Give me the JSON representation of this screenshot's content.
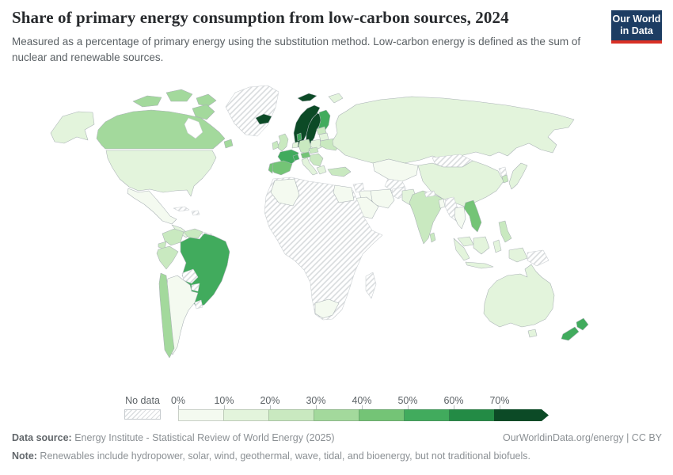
{
  "header": {
    "title": "Share of primary energy consumption from low-carbon sources, 2024",
    "subtitle": "Measured as a percentage of primary energy using the substitution method. Low-carbon energy is defined as the sum of nuclear and renewable sources.",
    "logo": {
      "line1": "Our World",
      "line2": "in Data",
      "bg_color": "#1d3d63",
      "accent_color": "#d93025"
    }
  },
  "legend": {
    "no_data_label": "No data",
    "tick_labels": [
      "0%",
      "10%",
      "20%",
      "30%",
      "40%",
      "50%",
      "60%",
      "70%"
    ]
  },
  "chart_data": {
    "type": "choropleth_map",
    "title": "Share of primary energy consumption from low-carbon sources",
    "year": "2024",
    "unit": "% of primary energy (substitution method)",
    "legend_position": "bottom",
    "no_data_style": "diagonal hatching",
    "buckets": [
      "0-10%",
      "10-20%",
      "20-30%",
      "30-40%",
      "40-50%",
      "50-60%",
      "60-70%",
      "70%+"
    ],
    "palette": [
      "#f4faf0",
      "#e3f4dc",
      "#c9e9c0",
      "#a3d99c",
      "#74c476",
      "#41ab5d",
      "#238b45",
      "#0c4a26"
    ],
    "region_buckets": {
      "canada": "30-40%",
      "usa": "10-20%",
      "mexico": "0-10%",
      "central-america": "10-20%",
      "cuba": "no-data",
      "hispaniola": "no-data",
      "greenland": "no-data",
      "colombia": "20-30%",
      "venezuela": "20-30%",
      "guyanas": "no-data",
      "ecuador": "20-30%",
      "peru": "20-30%",
      "brazil": "50-60%",
      "bolivia": "no-data",
      "paraguay": "no-data",
      "uruguay": "no-data",
      "chile": "30-40%",
      "argentina": "0-10%",
      "iceland": "70%+",
      "norway": "70%+",
      "svalbard": "70%+",
      "sweden": "70%+",
      "finland": "50-60%",
      "denmark": "50-60%",
      "uk": "20-30%",
      "ireland": "20-30%",
      "benelux": "10-20%",
      "france": "50-60%",
      "spain": "40-50%",
      "portugal": "40-50%",
      "germany": "20-30%",
      "poland": "10-20%",
      "czech-slovakia": "20-30%",
      "switzerland": "50-60%",
      "austria": "40-50%",
      "italy": "10-20%",
      "balkans": "20-30%",
      "greece": "10-20%",
      "baltics": "20-30%",
      "belarus": "10-20%",
      "ukraine": "20-30%",
      "turkey": "20-30%",
      "russia": "10-20%",
      "kazakhstan": "0-10%",
      "central-asia": "no-data",
      "mongolia": "no-data",
      "china": "10-20%",
      "japan": "10-20%",
      "south-korea": "20-30%",
      "north-korea": "no-data",
      "india": "20-30%",
      "pakistan": "10-20%",
      "afghanistan": "no-data",
      "nepal": "no-data",
      "bangladesh": "0-10%",
      "sri-lanka": "20-30%",
      "myanmar": "no-data",
      "thailand": "0-10%",
      "vietnam": "40-50%",
      "malaysia": "10-20%",
      "indonesia": "10-20%",
      "philippines": "20-30%",
      "iran": "0-10%",
      "iraq": "0-10%",
      "syria": "no-data",
      "saudi-arabia": "0-10%",
      "africa-other": "no-data",
      "algeria": "0-10%",
      "egypt": "0-10%",
      "south-africa": "0-10%",
      "madagascar": "no-data",
      "australia": "10-20%",
      "new-zealand": "50-60%",
      "papua-new-guinea": "no-data"
    }
  },
  "footer": {
    "source_label": "Data source:",
    "source_text": " Energy Institute - Statistical Review of World Energy (2025)",
    "link_text": "OurWorldinData.org/energy | CC BY",
    "note_label": "Note:",
    "note_text": " Renewables include hydropower, solar, wind, geothermal, wave, tidal, and bioenergy, but not traditional biofuels."
  }
}
